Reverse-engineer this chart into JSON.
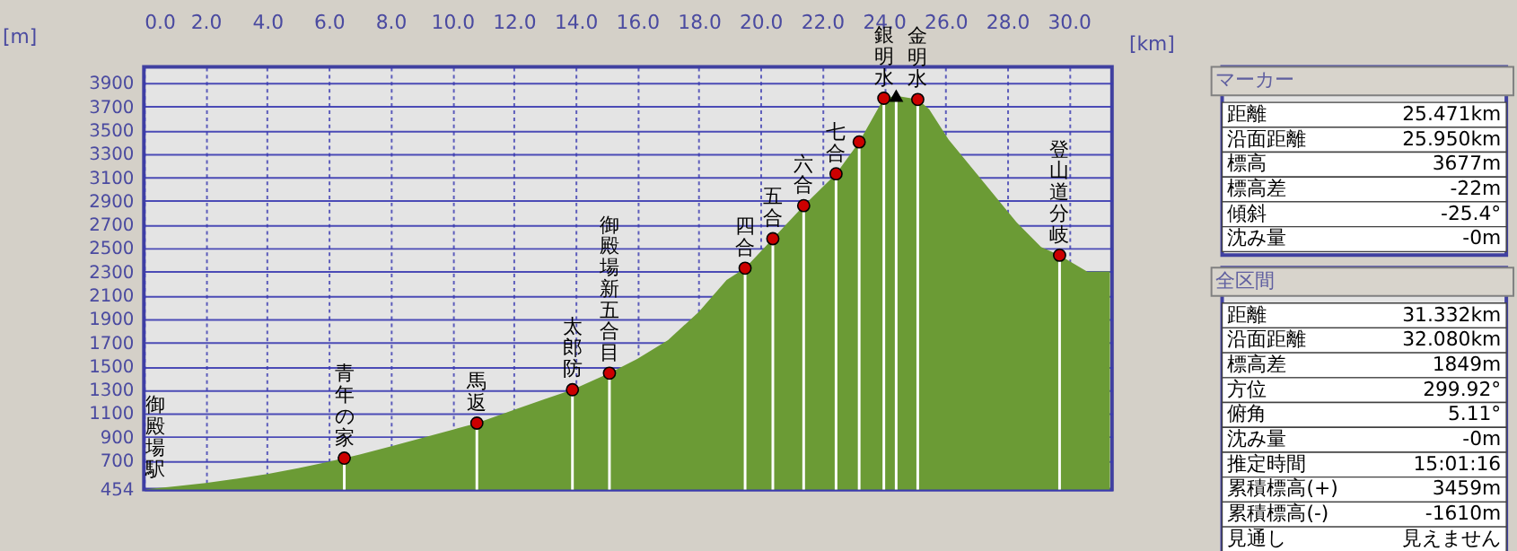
{
  "chart_data": [
    {
      "type": "area",
      "xlabel": "[km]",
      "ylabel": "[m]",
      "xlim": [
        0,
        31.4
      ],
      "ylim": [
        454,
        4036
      ],
      "xticks": [
        {
          "value": 0,
          "label": "0.0"
        },
        {
          "value": 2,
          "label": "2.0"
        },
        {
          "value": 4,
          "label": "4.0"
        },
        {
          "value": 6,
          "label": "6.0"
        },
        {
          "value": 8,
          "label": "8.0"
        },
        {
          "value": 10,
          "label": "10.0"
        },
        {
          "value": 12,
          "label": "12.0"
        },
        {
          "value": 14,
          "label": "14.0"
        },
        {
          "value": 16,
          "label": "16.0"
        },
        {
          "value": 18,
          "label": "18.0"
        },
        {
          "value": 20,
          "label": "20.0"
        },
        {
          "value": 22,
          "label": "22.0"
        },
        {
          "value": 24,
          "label": "24.0"
        },
        {
          "value": 26,
          "label": "26.0"
        },
        {
          "value": 28,
          "label": "28.0"
        },
        {
          "value": 30,
          "label": "30.0"
        }
      ],
      "yticks": [
        454,
        700,
        900,
        1100,
        1300,
        1500,
        1700,
        1900,
        2100,
        2300,
        2500,
        2700,
        2900,
        3100,
        3300,
        3500,
        3700,
        3900
      ],
      "grid": true,
      "series": [
        {
          "type": "area",
          "color": "#6b9b35",
          "x": [
            0,
            1,
            2,
            3,
            4,
            5,
            6,
            6.5,
            7,
            8,
            9,
            10,
            10.8,
            12,
            13,
            13.9,
            15.1,
            16,
            17,
            18,
            18.9,
            19.5,
            20.4,
            21.4,
            22.45,
            23.2,
            24.0,
            24.4,
            25.1,
            25.47,
            26.1,
            27.2,
            28.3,
            29.1,
            29.7,
            30.6,
            31.332
          ],
          "values": [
            454,
            480,
            510,
            545,
            585,
            635,
            690,
            720,
            750,
            820,
            890,
            960,
            1017,
            1130,
            1220,
            1300,
            1440,
            1560,
            1720,
            1960,
            2230,
            2330,
            2580,
            2860,
            3130,
            3400,
            3770,
            3790,
            3760,
            3677,
            3420,
            3070,
            2720,
            2510,
            2440,
            2300,
            2303
          ]
        },
        {
          "type": "scatter",
          "color": "#cc0000",
          "marker": "circle",
          "x": [
            6.5,
            10.8,
            13.9,
            15.1,
            19.5,
            20.4,
            21.4,
            22.45,
            23.2,
            24.0,
            25.1,
            29.7
          ],
          "values": [
            720,
            1017,
            1300,
            1440,
            2330,
            2580,
            2860,
            3130,
            3400,
            3770,
            3760,
            2440
          ]
        },
        {
          "type": "scatter",
          "color": "#000000",
          "marker": "triangle",
          "x": [
            24.4
          ],
          "values": [
            3790
          ]
        }
      ],
      "annotations": [
        {
          "text": "御殿場駅",
          "x": 0,
          "y": 454
        },
        {
          "text": "青年の家",
          "x": 6.5,
          "y": 720
        },
        {
          "text": "馬返",
          "x": 10.8,
          "y": 1017
        },
        {
          "text": "太郎防",
          "x": 13.9,
          "y": 1300
        },
        {
          "text": "御殿場新五合目",
          "x": 15.1,
          "y": 1440
        },
        {
          "text": "四合",
          "x": 19.5,
          "y": 2330
        },
        {
          "text": "五合",
          "x": 20.4,
          "y": 2580
        },
        {
          "text": "六合",
          "x": 21.4,
          "y": 2860
        },
        {
          "text": "七合",
          "x": 22.45,
          "y": 3130
        },
        {
          "text": "銀明水",
          "x": 24.0,
          "y": 3770
        },
        {
          "text": "金明水",
          "x": 25.1,
          "y": 3760
        },
        {
          "text": "登山道分岐",
          "x": 29.7,
          "y": 2440
        }
      ]
    },
    {
      "type": "other",
      "title": "マーカー",
      "categories": [
        "距離",
        "沿面距離",
        "標高",
        "標高差",
        "傾斜",
        "沈み量"
      ],
      "value_labels": [
        "25.471km",
        "25.950km",
        "3677m",
        "-22m",
        "-25.4°",
        "-0m"
      ]
    },
    {
      "type": "other",
      "title": "全区間",
      "categories": [
        "距離",
        "沿面距離",
        "標高差",
        "方位",
        "俯角",
        "沈み量",
        "推定時間",
        "累積標高(+)",
        "累積標高(-)",
        "見通し"
      ],
      "value_labels": [
        "31.332km",
        "32.080km",
        "1849m",
        "299.92°",
        "5.11°",
        "-0m",
        "15:01:16",
        "3459m",
        "-1610m",
        "見えません"
      ]
    }
  ]
}
